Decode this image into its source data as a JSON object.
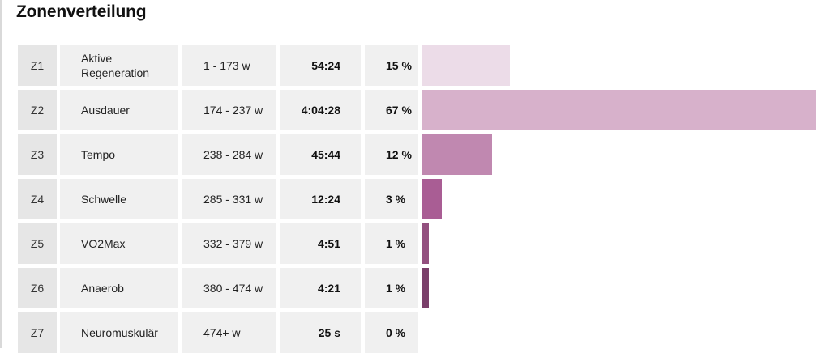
{
  "title": "Zonenverteilung",
  "zones": [
    {
      "zone": "Z1",
      "name": "Aktive Regeneration",
      "range": "1 - 173 w",
      "time": "54:24",
      "percent_label": "15 %",
      "percent": 15,
      "color": "#ecdce8"
    },
    {
      "zone": "Z2",
      "name": "Ausdauer",
      "range": "174 - 237 w",
      "time": "4:04:28",
      "percent_label": "67 %",
      "percent": 67,
      "color": "#d7b1cb"
    },
    {
      "zone": "Z3",
      "name": "Tempo",
      "range": "238 - 284 w",
      "time": "45:44",
      "percent_label": "12 %",
      "percent": 12,
      "color": "#c088b0"
    },
    {
      "zone": "Z4",
      "name": "Schwelle",
      "range": "285 - 331 w",
      "time": "12:24",
      "percent_label": "3 %",
      "percent": 3.4,
      "color": "#a95d94"
    },
    {
      "zone": "Z5",
      "name": "VO2Max",
      "range": "332 - 379 w",
      "time": "4:51",
      "percent_label": "1 %",
      "percent": 1.3,
      "color": "#93507f"
    },
    {
      "zone": "Z6",
      "name": "Anaerob",
      "range": "380 - 474 w",
      "time": "4:21",
      "percent_label": "1 %",
      "percent": 1.2,
      "color": "#7a3f6a"
    },
    {
      "zone": "Z7",
      "name": "Neuromuskulär",
      "range": "474+ w",
      "time": "25 s",
      "percent_label": "0 %",
      "percent": 0.1,
      "color": "#5c2c50"
    }
  ]
}
